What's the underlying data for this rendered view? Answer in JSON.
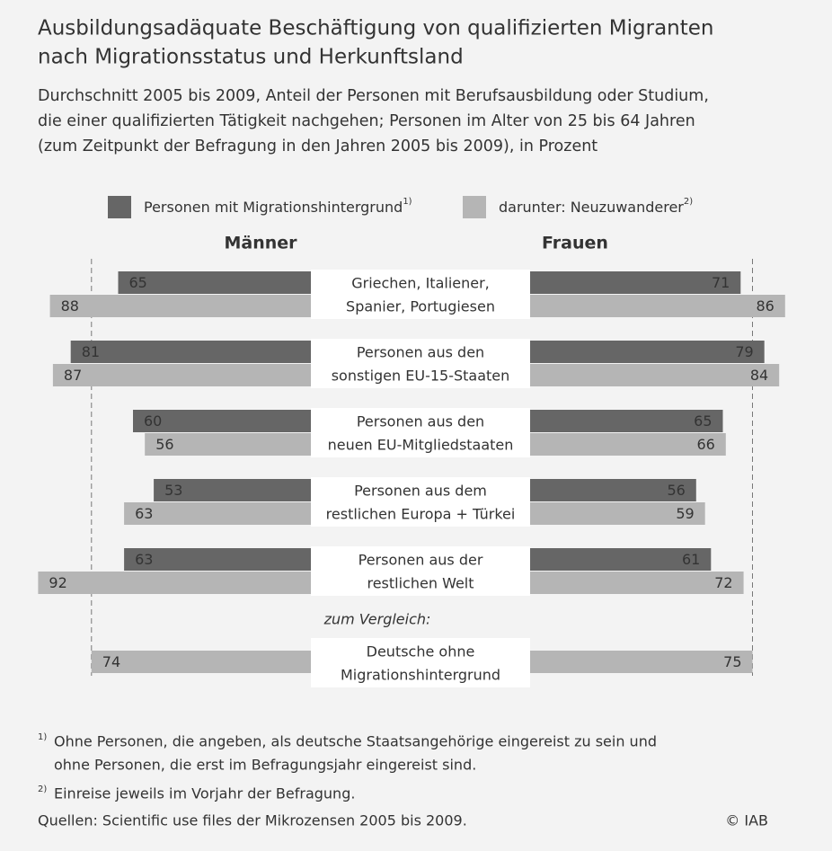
{
  "chart_data": {
    "type": "butterfly-bar",
    "title": [
      "Ausbildungsadäquate Beschäftigung von qualifizierten Migranten",
      "nach Migrationsstatus und Herkunftsland"
    ],
    "subtitle": [
      "Durchschnitt 2005 bis 2009, Anteil der Personen mit Berufsausbildung oder Studium,",
      "die einer qualifizierten Tätigkeit nachgehen; Personen im Alter von 25 bis 64 Jahren",
      "(zum Zeitpunkt der Befragung in den Jahren 2005 bis 2009), in Prozent"
    ],
    "panels": [
      "Männer",
      "Frauen"
    ],
    "categories": [
      [
        "Griechen, Italiener,",
        "Spanier, Portugiesen"
      ],
      [
        "Personen aus den",
        "sonstigen EU-15-Staaten"
      ],
      [
        "Personen aus den",
        "neuen EU-Mitgliedstaaten"
      ],
      [
        "Personen aus dem",
        "restlichen Europa + Türkei"
      ],
      [
        "Personen aus der",
        "restlichen Welt"
      ],
      [
        "Deutsche ohne",
        "Migrationshintergrund"
      ]
    ],
    "comparison_label": "zum Vergleich:",
    "series": [
      {
        "name": "Personen mit Migrationshintergrund",
        "note": "1)",
        "color": "#666666",
        "value_color": "#ffffff",
        "men": [
          65,
          81,
          60,
          53,
          63,
          null
        ],
        "women": [
          71,
          79,
          65,
          56,
          61,
          null
        ]
      },
      {
        "name": "darunter: Neuzuwanderer",
        "note": "2)",
        "color": "#b5b5b5",
        "value_color": "#333333",
        "men": [
          88,
          87,
          56,
          63,
          92,
          74
        ],
        "women": [
          86,
          84,
          66,
          59,
          72,
          75
        ]
      }
    ],
    "footnotes": [
      {
        "marker": "1)",
        "lines": [
          "Ohne Personen, die angeben, als deutsche Staatsangehörige eingereist zu sein und",
          "ohne Personen, die erst im Befragungsjahr eingereist sind."
        ]
      },
      {
        "marker": "2)",
        "lines": [
          "Einreise jeweils im Vorjahr der Befragung."
        ]
      }
    ],
    "source": "Quellen: Scientific use files der Mikrozensen 2005 bis 2009.",
    "copyright": "© IAB"
  }
}
